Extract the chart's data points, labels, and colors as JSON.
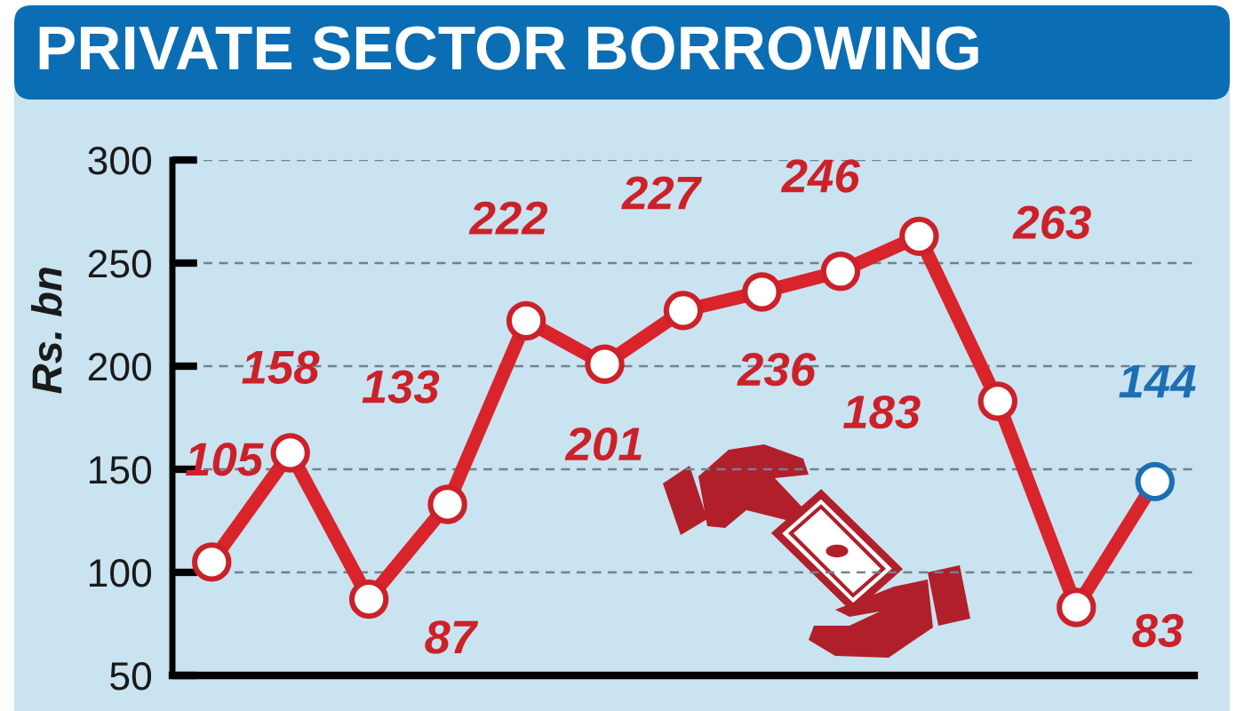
{
  "chart_data": {
    "type": "line",
    "title": "PRIVATE SECTOR BORROWING",
    "ylabel": "Rs. bn",
    "categories": [
      null,
      null,
      null,
      null,
      null,
      null,
      null,
      null,
      null,
      null,
      null,
      null,
      null
    ],
    "series": [
      {
        "color": "#d9242b",
        "colors": [
          "#cc2129",
          "#cc2129",
          "#cc2129",
          "#cc2129",
          "#cc2129",
          "#cc2129",
          "#cc2129",
          "#cc2129",
          "#cc2129",
          "#cc2129",
          "#cc2129",
          "#cc2129",
          "#1c6fb3"
        ],
        "values": [
          105,
          158,
          87,
          133,
          222,
          201,
          227,
          236,
          246,
          263,
          183,
          83,
          144
        ]
      }
    ],
    "ylim": [
      50,
      300
    ],
    "yticks": [
      50,
      100,
      150,
      200,
      250,
      300
    ],
    "grid": "y",
    "marker": "circle",
    "line_style": "solid",
    "data_labels": true
  }
}
